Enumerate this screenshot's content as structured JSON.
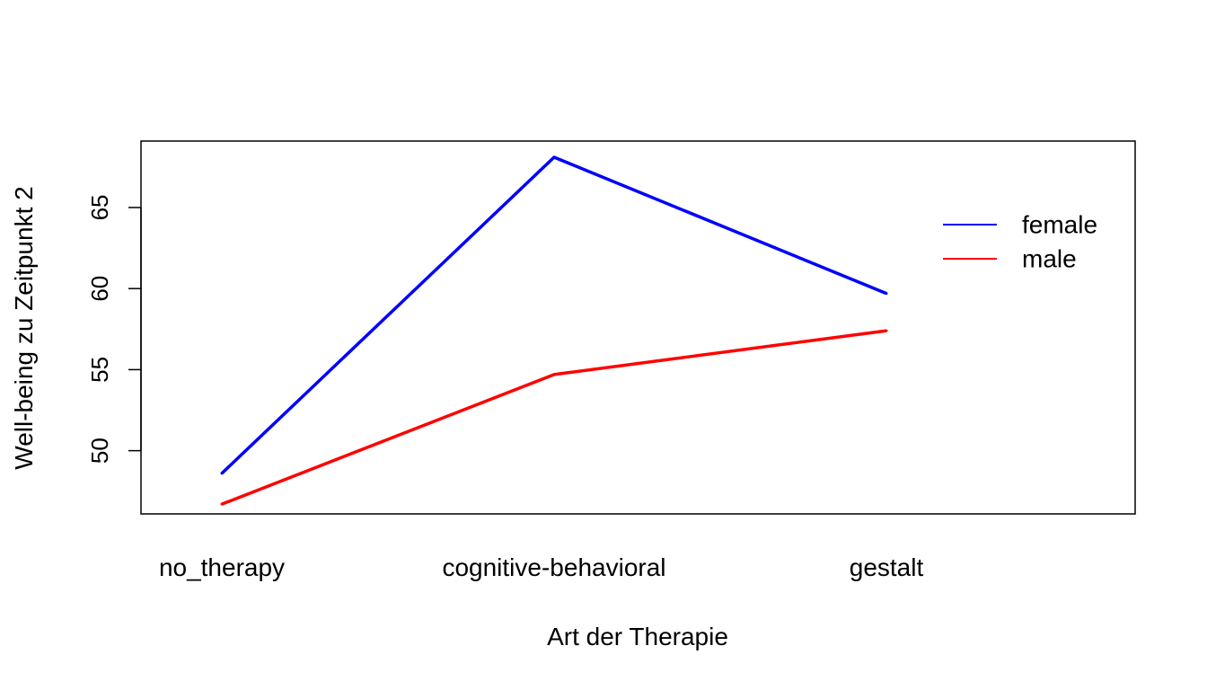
{
  "chart_data": {
    "type": "line",
    "title": "",
    "xlabel": "Art der Therapie",
    "ylabel": "Well-being zu Zeitpunkt 2",
    "categories": [
      "no_therapy",
      "cognitive-behavioral",
      "gestalt"
    ],
    "yticks": [
      "50",
      "55",
      "60",
      "65"
    ],
    "ylim": [
      46.1,
      69.1
    ],
    "grid": false,
    "legend_position": "top-right",
    "series": [
      {
        "name": "female",
        "color": "#0000FF",
        "values": [
          48.6,
          68.1,
          59.7
        ]
      },
      {
        "name": "male",
        "color": "#FF0000",
        "values": [
          46.7,
          54.7,
          57.4
        ]
      }
    ]
  }
}
